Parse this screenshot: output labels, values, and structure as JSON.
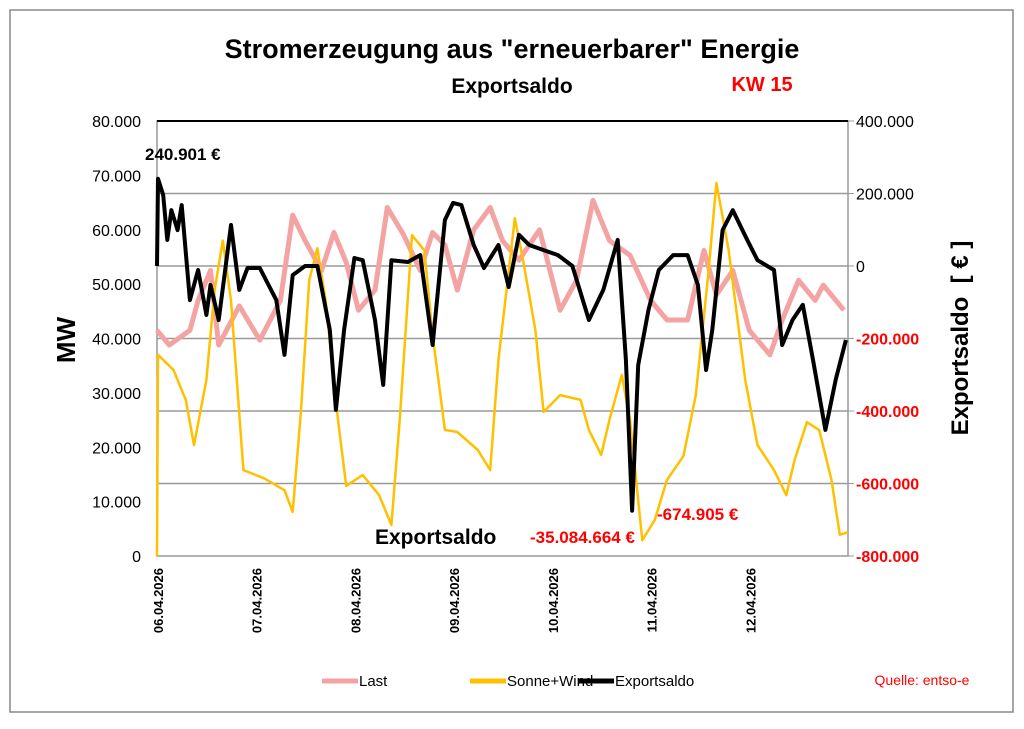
{
  "chart_data": {
    "type": "line",
    "title": "Stromerzeugung aus \"erneuerbarer\" Energie",
    "subtitle": "Exportsaldo",
    "week_label": "KW 15",
    "ylabel": "MW",
    "y2label": "Exportsaldo  [ € ]",
    "ylim": [
      0,
      80000
    ],
    "y2lim": [
      -800000,
      400000
    ],
    "xlim": [
      "2026-04-06T00:00",
      "2026-04-13T00:00"
    ],
    "y_ticks": [
      "0",
      "10.000",
      "20.000",
      "30.000",
      "40.000",
      "50.000",
      "60.000",
      "70.000",
      "80.000"
    ],
    "y2_ticks": [
      "-800.000",
      "-600.000",
      "-400.000",
      "-200.000",
      "0",
      "200.000",
      "400.000"
    ],
    "x_ticks": [
      "06.04.2026",
      "07.04.2026",
      "08.04.2026",
      "09.04.2026",
      "10.04.2026",
      "11.04.2026",
      "12.04.2026"
    ],
    "grid": "horizontal",
    "legend_position": "bottom",
    "source": "Quelle: entso-e",
    "annotations": {
      "max_export": "240.901 €",
      "total_label": "Exportsaldo",
      "total_value": "-35.084.664 €",
      "min_export": "-674.905 €"
    },
    "series": [
      {
        "name": "Last",
        "axis": "left",
        "color": "#f4a3a3",
        "t": [
          "2026-04-06T00:00",
          "2026-04-06T03:00",
          "2026-04-06T08:00",
          "2026-04-06T10:00",
          "2026-04-06T13:00",
          "2026-04-06T15:00",
          "2026-04-06T20:00",
          "2026-04-07T01:00",
          "2026-04-07T06:00",
          "2026-04-07T09:00",
          "2026-04-07T12:00",
          "2026-04-07T16:00",
          "2026-04-07T19:00",
          "2026-04-07T22:00",
          "2026-04-08T01:00",
          "2026-04-08T05:00",
          "2026-04-08T08:00",
          "2026-04-08T12:00",
          "2026-04-08T16:00",
          "2026-04-08T19:00",
          "2026-04-08T22:00",
          "2026-04-09T01:00",
          "2026-04-09T05:00",
          "2026-04-09T09:00",
          "2026-04-09T12:00",
          "2026-04-09T16:00",
          "2026-04-09T21:00",
          "2026-04-10T02:00",
          "2026-04-10T06:00",
          "2026-04-10T10:00",
          "2026-04-10T14:00",
          "2026-04-10T19:00",
          "2026-04-11T00:00",
          "2026-04-11T04:00",
          "2026-04-11T09:00",
          "2026-04-11T13:00",
          "2026-04-11T16:00",
          "2026-04-11T20:00",
          "2026-04-12T00:00",
          "2026-04-12T05:00",
          "2026-04-12T08:00",
          "2026-04-12T12:00",
          "2026-04-12T16:00",
          "2026-04-12T18:00",
          "2026-04-12T23:00"
        ],
        "v": [
          41500,
          38800,
          41500,
          47000,
          52500,
          38800,
          46000,
          39700,
          47000,
          62700,
          58000,
          52500,
          59500,
          54000,
          45200,
          48900,
          64100,
          59000,
          52500,
          59500,
          57200,
          48900,
          60000,
          64100,
          58000,
          54400,
          60000,
          45200,
          50700,
          65400,
          58000,
          55300,
          47000,
          43400,
          43400,
          56200,
          48000,
          52500,
          41500,
          37000,
          43400,
          50700,
          47000,
          49800,
          45200
        ]
      },
      {
        "name": "Sonne+Wind",
        "axis": "left",
        "color": "#ffc000",
        "t": [
          "2026-04-06T00:00",
          "2026-04-06T00:15",
          "2026-04-06T04:00",
          "2026-04-06T07:00",
          "2026-04-06T09:00",
          "2026-04-06T12:00",
          "2026-04-06T14:00",
          "2026-04-06T16:00",
          "2026-04-06T18:00",
          "2026-04-06T21:00",
          "2026-04-07T02:00",
          "2026-04-07T07:00",
          "2026-04-07T09:00",
          "2026-04-07T11:00",
          "2026-04-07T13:00",
          "2026-04-07T15:00",
          "2026-04-07T17:00",
          "2026-04-07T20:00",
          "2026-04-07T22:00",
          "2026-04-08T02:00",
          "2026-04-08T06:00",
          "2026-04-08T09:00",
          "2026-04-08T11:00",
          "2026-04-08T14:00",
          "2026-04-08T17:00",
          "2026-04-08T19:00",
          "2026-04-08T22:00",
          "2026-04-09T01:00",
          "2026-04-09T06:00",
          "2026-04-09T09:00",
          "2026-04-09T11:00",
          "2026-04-09T15:00",
          "2026-04-09T17:00",
          "2026-04-09T20:00",
          "2026-04-09T22:00",
          "2026-04-10T02:00",
          "2026-04-10T07:00",
          "2026-04-10T09:00",
          "2026-04-10T12:00",
          "2026-04-10T14:00",
          "2026-04-10T17:00",
          "2026-04-10T19:00",
          "2026-04-10T22:00",
          "2026-04-11T01:00",
          "2026-04-11T04:00",
          "2026-04-11T08:00",
          "2026-04-11T11:00",
          "2026-04-11T14:00",
          "2026-04-11T16:00",
          "2026-04-11T19:00",
          "2026-04-11T23:00",
          "2026-04-12T02:00",
          "2026-04-12T06:00",
          "2026-04-12T09:00",
          "2026-04-12T11:00",
          "2026-04-12T14:00",
          "2026-04-12T17:00",
          "2026-04-12T20:00",
          "2026-04-12T22:00",
          "2026-04-13T00:00"
        ],
        "v": [
          0,
          37000,
          34200,
          28700,
          20400,
          32400,
          48900,
          58000,
          47000,
          15800,
          14300,
          12100,
          8100,
          26800,
          50700,
          56600,
          47000,
          25000,
          12900,
          14900,
          11200,
          5700,
          25000,
          59000,
          56200,
          40600,
          23200,
          22800,
          19500,
          15800,
          36000,
          62100,
          54400,
          41500,
          26500,
          29600,
          28700,
          23200,
          18600,
          25000,
          33300,
          25000,
          2900,
          6600,
          14000,
          18400,
          29600,
          51700,
          68600,
          56200,
          32400,
          20400,
          15800,
          11200,
          17600,
          24600,
          23200,
          14000,
          3900,
          4400
        ]
      },
      {
        "name": "Exportsaldo",
        "axis": "right",
        "color": "#000000",
        "t": [
          "2026-04-06T00:00",
          "2026-04-06T00:15",
          "2026-04-06T01:30",
          "2026-04-06T02:30",
          "2026-04-06T03:30",
          "2026-04-06T05:00",
          "2026-04-06T06:00",
          "2026-04-06T08:00",
          "2026-04-06T10:00",
          "2026-04-06T12:00",
          "2026-04-06T13:00",
          "2026-04-06T15:00",
          "2026-04-06T18:00",
          "2026-04-06T20:00",
          "2026-04-06T22:00",
          "2026-04-07T01:00",
          "2026-04-07T05:00",
          "2026-04-07T07:00",
          "2026-04-07T09:00",
          "2026-04-07T12:00",
          "2026-04-07T15:00",
          "2026-04-07T18:00",
          "2026-04-07T19:30",
          "2026-04-07T21:30",
          "2026-04-08T00:00",
          "2026-04-08T02:00",
          "2026-04-08T05:00",
          "2026-04-08T07:00",
          "2026-04-08T09:00",
          "2026-04-08T13:00",
          "2026-04-08T16:00",
          "2026-04-08T19:00",
          "2026-04-08T22:00",
          "2026-04-09T00:00",
          "2026-04-09T02:00",
          "2026-04-09T05:00",
          "2026-04-09T07:30",
          "2026-04-09T11:00",
          "2026-04-09T13:30",
          "2026-04-09T16:00",
          "2026-04-09T18:30",
          "2026-04-09T22:00",
          "2026-04-10T01:30",
          "2026-04-10T05:00",
          "2026-04-10T09:00",
          "2026-04-10T12:30",
          "2026-04-10T16:00",
          "2026-04-10T18:00",
          "2026-04-10T19:30",
          "2026-04-10T21:00",
          "2026-04-10T23:30",
          "2026-04-11T02:00",
          "2026-04-11T05:30",
          "2026-04-11T09:00",
          "2026-04-11T11:30",
          "2026-04-11T13:30",
          "2026-04-11T15:00",
          "2026-04-11T17:30",
          "2026-04-11T20:00",
          "2026-04-11T23:30",
          "2026-04-12T02:00",
          "2026-04-12T06:00",
          "2026-04-12T08:00",
          "2026-04-12T10:30",
          "2026-04-12T13:00",
          "2026-04-12T15:30",
          "2026-04-12T18:30",
          "2026-04-12T21:00",
          "2026-04-12T23:30"
        ],
        "v": [
          0,
          240901,
          196000,
          72000,
          154000,
          99000,
          168000,
          -94000,
          -11000,
          -135000,
          -52000,
          -149000,
          113000,
          -66000,
          -5500,
          -5500,
          -94000,
          -245000,
          -25000,
          0,
          0,
          -176000,
          -397000,
          -176000,
          22000,
          16000,
          -149000,
          -328000,
          16000,
          11000,
          30000,
          -218000,
          127000,
          174000,
          168000,
          58000,
          -5500,
          58000,
          -58000,
          86000,
          58000,
          44000,
          30000,
          0,
          -149000,
          -66000,
          72000,
          -259000,
          -674905,
          -273000,
          -121000,
          -11000,
          30000,
          30000,
          -52000,
          -287000,
          -176000,
          99000,
          154000,
          72000,
          16000,
          -11000,
          -218000,
          -149000,
          -107000,
          -259000,
          -452000,
          -314000,
          -204000
        ]
      }
    ]
  }
}
